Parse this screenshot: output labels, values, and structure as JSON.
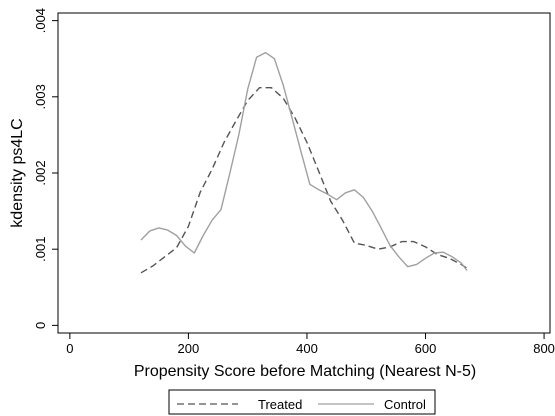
{
  "chart_data": {
    "type": "line",
    "title": "",
    "xlabel": "Propensity Score before Matching (Nearest N-5)",
    "ylabel": "kdensity ps4LC",
    "xlim": [
      -20,
      810
    ],
    "ylim": [
      -0.0001,
      0.0041
    ],
    "xticks": [
      0,
      200,
      400,
      600,
      800
    ],
    "xtick_labels": [
      "0",
      "200",
      "400",
      "600",
      "800"
    ],
    "yticks": [
      0,
      0.001,
      0.002,
      0.003,
      0.004
    ],
    "ytick_labels": [
      "0",
      ".001",
      ".002",
      ".003",
      ".004"
    ],
    "grid": false,
    "legend_placement": "bottom",
    "series": [
      {
        "name": "Treated",
        "style": "dashed",
        "color": "#555555",
        "x": [
          120,
          140,
          160,
          180,
          200,
          220,
          240,
          260,
          280,
          300,
          320,
          340,
          360,
          380,
          400,
          420,
          440,
          460,
          480,
          500,
          520,
          540,
          560,
          580,
          600,
          620,
          640,
          660,
          670
        ],
        "y": [
          0.00069,
          0.00078,
          0.0009,
          0.00102,
          0.0013,
          0.00175,
          0.00205,
          0.0024,
          0.00268,
          0.00295,
          0.00312,
          0.00312,
          0.00298,
          0.00272,
          0.0024,
          0.00202,
          0.00163,
          0.00138,
          0.00108,
          0.00105,
          0.001,
          0.00103,
          0.0011,
          0.0011,
          0.00103,
          0.00093,
          0.00088,
          0.0008,
          0.00075
        ]
      },
      {
        "name": "Control",
        "style": "solid",
        "color": "#a0a0a0",
        "x": [
          120,
          135,
          150,
          165,
          180,
          195,
          210,
          225,
          240,
          255,
          270,
          285,
          300,
          315,
          330,
          345,
          360,
          375,
          390,
          405,
          420,
          435,
          450,
          465,
          480,
          495,
          510,
          525,
          540,
          555,
          570,
          585,
          600,
          615,
          630,
          645,
          660,
          670
        ],
        "y": [
          0.00112,
          0.00124,
          0.00128,
          0.00125,
          0.00118,
          0.00104,
          0.00095,
          0.00118,
          0.00138,
          0.00152,
          0.002,
          0.0025,
          0.0031,
          0.00352,
          0.00358,
          0.0035,
          0.00315,
          0.00272,
          0.00228,
          0.00185,
          0.00178,
          0.00172,
          0.00165,
          0.00174,
          0.00178,
          0.00168,
          0.0015,
          0.00128,
          0.00105,
          0.0009,
          0.00077,
          0.0008,
          0.00088,
          0.00095,
          0.00096,
          0.0009,
          0.00082,
          0.00072
        ]
      }
    ]
  }
}
